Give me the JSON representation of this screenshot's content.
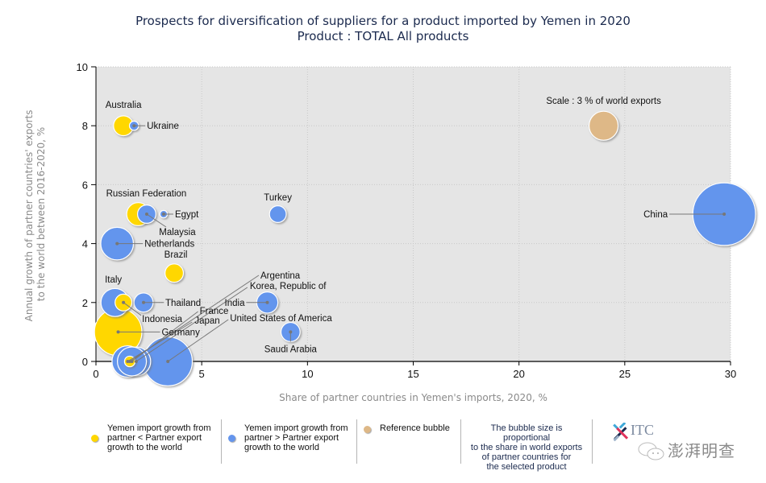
{
  "header": {
    "title": "Prospects for diversification of suppliers for a product imported by Yemen in 2020",
    "subtitle": "Product : TOTAL All products"
  },
  "colors": {
    "below": "#FFD700",
    "above": "#6495ED",
    "reference": "#DEB887",
    "plot_bg": "#E5E5E5",
    "title": "#1B2A4E"
  },
  "chart_data": {
    "type": "bubble",
    "title": "Prospects for diversification of suppliers for a product imported by Yemen in 2020",
    "subtitle": "Product : TOTAL All products",
    "xlabel": "Share of partner countries in Yemen's imports, 2020, %",
    "ylabel": "Annual growth of partner countries' exports to the world between 2016-2020, %",
    "xlim": [
      0,
      30
    ],
    "ylim": [
      0,
      10
    ],
    "xticks": [
      0,
      5,
      10,
      15,
      20,
      25,
      30
    ],
    "yticks": [
      0,
      2,
      4,
      6,
      8,
      10
    ],
    "grid": true,
    "legend_position": "bottom",
    "size_meaning": "share in world exports, %",
    "reference": {
      "label": "Scale : 3 % of world exports",
      "x": 24.0,
      "y": 8,
      "size": 3
    },
    "series": [
      {
        "name": "Yemen import growth from partner < Partner export growth to the world",
        "category": "below",
        "points": [
          {
            "label": "Australia",
            "x": 1.3,
            "y": 8,
            "size": 1.4
          },
          {
            "label": "Russian Federation",
            "x": 2.0,
            "y": 5,
            "size": 1.9
          },
          {
            "label": "Brazil",
            "x": 3.7,
            "y": 3,
            "size": 1.2
          },
          {
            "label": "Indonesia",
            "x": 1.3,
            "y": 2,
            "size": 1.0
          },
          {
            "label": "Germany",
            "x": 1.05,
            "y": 1,
            "size": 8.0
          },
          {
            "label": "Argentina",
            "x": 1.6,
            "y": 0,
            "size": 0.4
          }
        ]
      },
      {
        "name": "Yemen import growth from partner > Partner export growth to the world",
        "category": "above",
        "points": [
          {
            "label": "Ukraine",
            "x": 1.8,
            "y": 8,
            "size": 0.3
          },
          {
            "label": "Malaysia",
            "x": 2.4,
            "y": 5,
            "size": 1.2
          },
          {
            "label": "Egypt",
            "x": 3.2,
            "y": 5,
            "size": 0.2
          },
          {
            "label": "Netherlands",
            "x": 1.0,
            "y": 4,
            "size": 3.8
          },
          {
            "label": "Turkey",
            "x": 8.6,
            "y": 5,
            "size": 1.0
          },
          {
            "label": "Italy",
            "x": 0.9,
            "y": 2,
            "size": 2.8
          },
          {
            "label": "Thailand",
            "x": 2.25,
            "y": 2,
            "size": 1.3
          },
          {
            "label": "India",
            "x": 8.1,
            "y": 2,
            "size": 1.6
          },
          {
            "label": "Saudi Arabia",
            "x": 9.2,
            "y": 1,
            "size": 1.3
          },
          {
            "label": "Korea, Republic of",
            "x": 1.9,
            "y": 0,
            "size": 3.0
          },
          {
            "label": "France",
            "x": 1.7,
            "y": 0,
            "size": 3.0
          },
          {
            "label": "Japan",
            "x": 1.5,
            "y": 0,
            "size": 3.5
          },
          {
            "label": "United States of America",
            "x": 3.4,
            "y": 0,
            "size": 8.5
          },
          {
            "label": "China",
            "x": 29.7,
            "y": 5,
            "size": 14.0
          }
        ]
      }
    ]
  },
  "legend": {
    "items": [
      {
        "label_lines": [
          "Yemen import growth from",
          "partner < Partner export",
          "growth to the world"
        ],
        "icon": "yellow-dot"
      },
      {
        "label_lines": [
          "Yemen import growth from",
          "partner > Partner export",
          "growth to the world"
        ],
        "icon": "blue-dot"
      },
      {
        "label_lines": [
          "Reference bubble"
        ],
        "icon": "tan-dot"
      }
    ],
    "note_lines": [
      "The bubble size is proportional",
      "to the share in world exports",
      "of partner countries for",
      "the selected product"
    ]
  },
  "branding": {
    "logo_text": "ITC",
    "watermark": "澎湃明查"
  }
}
